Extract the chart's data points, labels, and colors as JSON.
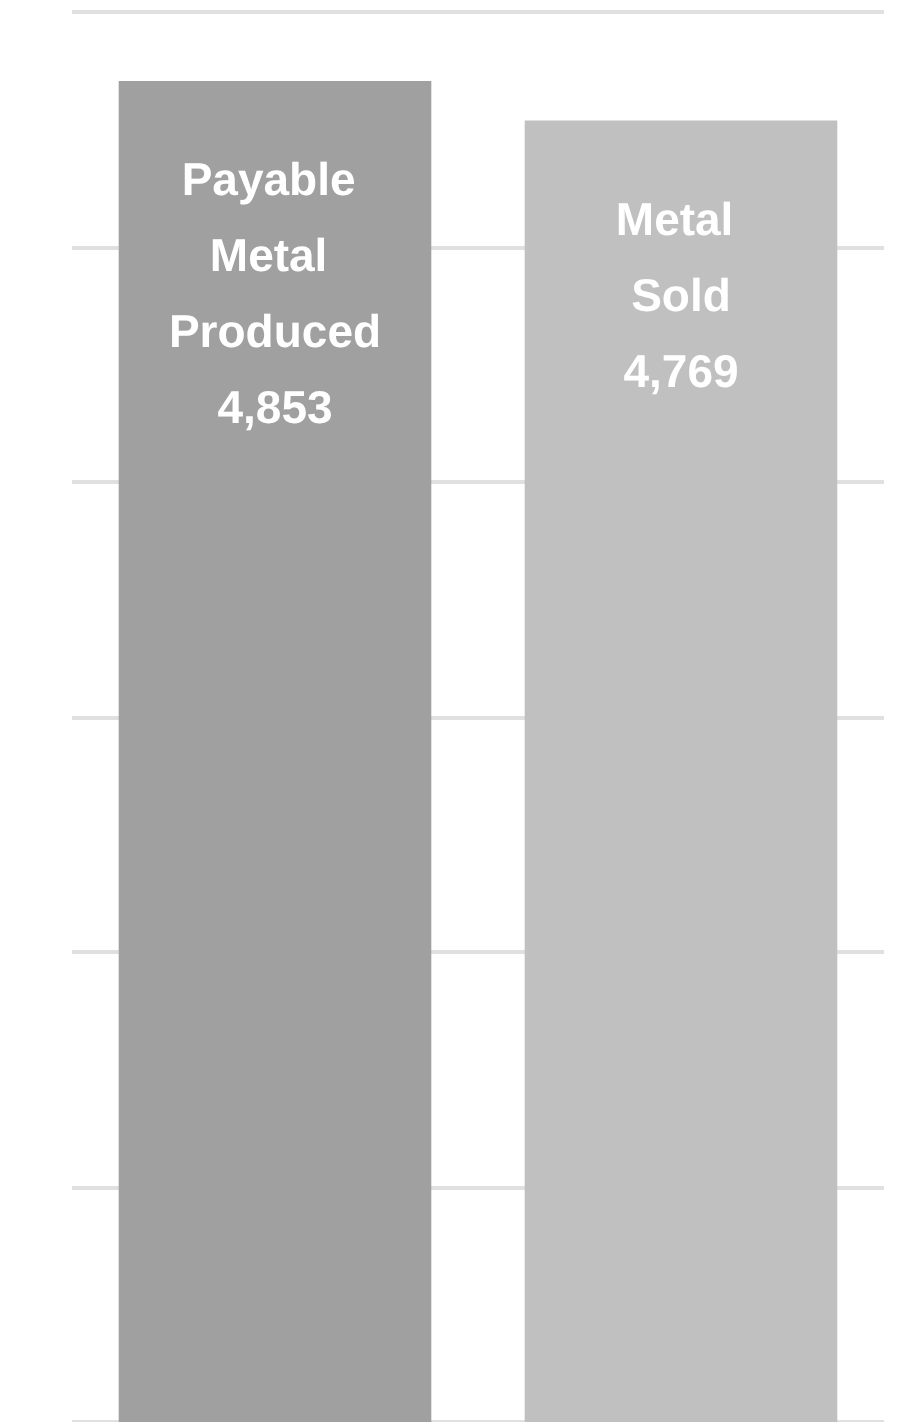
{
  "chart_data": {
    "type": "bar",
    "categories": [
      "Payable Metal Produced",
      "Metal Sold"
    ],
    "values": [
      4853,
      4769
    ],
    "colors": [
      "#a0a0a0",
      "#c0c0c0"
    ],
    "value_labels": [
      "4,853",
      "4,769"
    ],
    "ylim": [
      2000,
      5000
    ],
    "yticks": [
      {
        "value": 2000,
        "label": null
      },
      {
        "value": 2500,
        "label": null
      },
      {
        "value": 3000,
        "label": null
      },
      {
        "value": 3500,
        "label": null
      },
      {
        "value": 4000,
        "label": null
      },
      {
        "value": 4500,
        "label": null
      },
      {
        "value": 5000,
        "label": null
      }
    ],
    "grid": "y",
    "tick_labels": false
  }
}
